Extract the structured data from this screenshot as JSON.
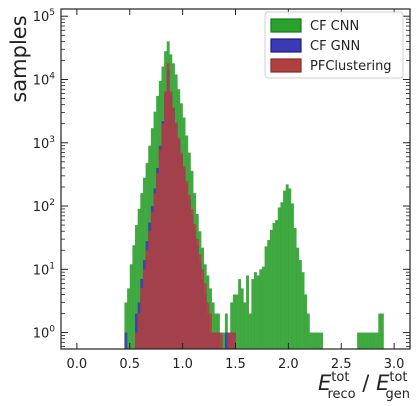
{
  "chart_data": {
    "type": "histogram",
    "title": "",
    "xlabel": {
      "main": "E",
      "sup1": "tot",
      "sub1": "reco",
      "sep": " / ",
      "main2": "E",
      "sup2": "tot",
      "sub2": "gen"
    },
    "ylabel": "samples",
    "y_scale": "log",
    "xlim": [
      -0.15,
      3.15
    ],
    "ylim": [
      0.55,
      130000
    ],
    "x_ticks": [
      0.0,
      0.5,
      1.0,
      1.5,
      2.0,
      2.5,
      3.0
    ],
    "x_tick_labels": [
      "0.0",
      "0.5",
      "1.0",
      "1.5",
      "2.0",
      "2.5",
      "3.0"
    ],
    "y_ticks": [
      1,
      10,
      100,
      1000,
      10000,
      100000
    ],
    "y_tick_labels": [
      {
        "base": "10",
        "exp": "0"
      },
      {
        "base": "10",
        "exp": "1"
      },
      {
        "base": "10",
        "exp": "2"
      },
      {
        "base": "10",
        "exp": "3"
      },
      {
        "base": "10",
        "exp": "4"
      },
      {
        "base": "10",
        "exp": "5"
      }
    ],
    "grid": false,
    "legend_position": "top-right",
    "bins": {
      "start": 0.0,
      "width": 0.025
    },
    "series": [
      {
        "name": "CF CNN",
        "fill": "#2ca02c",
        "edge": "#1a7a1a",
        "counts": {
          "18": 3,
          "19": 5,
          "20": 12,
          "21": 24,
          "22": 50,
          "23": 90,
          "24": 160,
          "25": 280,
          "26": 480,
          "27": 900,
          "28": 1700,
          "29": 3100,
          "30": 5500,
          "31": 9500,
          "32": 16000,
          "33": 28000,
          "34": 40000,
          "35": 25000,
          "36": 18000,
          "37": 12000,
          "38": 7000,
          "39": 4200,
          "40": 2500,
          "41": 1300,
          "42": 700,
          "43": 360,
          "44": 160,
          "45": 75,
          "46": 40,
          "47": 22,
          "48": 12,
          "49": 8,
          "50": 5,
          "51": 3,
          "52": 2,
          "53": 2,
          "54": 1,
          "55": 1,
          "56": 2,
          "57": 1,
          "58": 3,
          "59": 4,
          "60": 4,
          "61": 7,
          "62": 5,
          "63": 3,
          "64": 8,
          "65": 2,
          "66": 7,
          "67": 9,
          "68": 8,
          "69": 10,
          "70": 11,
          "71": 23,
          "72": 29,
          "73": 42,
          "74": 54,
          "75": 60,
          "76": 95,
          "77": 115,
          "78": 175,
          "79": 220,
          "80": 190,
          "81": 110,
          "82": 45,
          "83": 22,
          "84": 14,
          "85": 9,
          "86": 4,
          "87": 2,
          "88": 1,
          "89": 1,
          "90": 1,
          "91": 1,
          "92": 1,
          "106": 1,
          "107": 1,
          "108": 1,
          "109": 1,
          "110": 1,
          "111": 1,
          "112": 1,
          "113": 1,
          "114": 2,
          "115": 2
        }
      },
      {
        "name": "CF GNN",
        "fill": "#3a3ab5",
        "edge": "#1a1a8a",
        "counts": {
          "18": 1,
          "22": 2,
          "23": 3,
          "24": 7,
          "25": 14,
          "26": 28,
          "27": 55,
          "28": 100,
          "29": 190,
          "30": 400,
          "31": 900,
          "32": 2200,
          "33": 6000,
          "34": 14000,
          "35": 6000,
          "36": 3500,
          "37": 2000,
          "38": 1100,
          "39": 650,
          "40": 380,
          "41": 220,
          "42": 130,
          "43": 75,
          "44": 42,
          "45": 24,
          "46": 13,
          "47": 7,
          "48": 4,
          "49": 2,
          "50": 1,
          "51": 1,
          "52": 1,
          "53": 1,
          "56": 1,
          "57": 1,
          "58": 1,
          "59": 1
        }
      },
      {
        "name": "PFClustering",
        "fill": "#b04040",
        "edge": "#8a2a2a",
        "counts": {
          "22": 1,
          "23": 2,
          "24": 5,
          "25": 10,
          "26": 20,
          "27": 40,
          "28": 80,
          "29": 160,
          "30": 330,
          "31": 780,
          "32": 2000,
          "33": 6500,
          "34": 18000,
          "35": 6500,
          "36": 3600,
          "37": 2100,
          "38": 1200,
          "39": 700,
          "40": 420,
          "41": 250,
          "42": 150,
          "43": 90,
          "44": 52,
          "45": 30,
          "46": 17,
          "47": 10,
          "48": 6,
          "49": 3,
          "50": 2,
          "51": 1,
          "52": 1,
          "53": 1,
          "54": 1,
          "57": 1,
          "58": 1,
          "59": 1
        }
      }
    ]
  }
}
